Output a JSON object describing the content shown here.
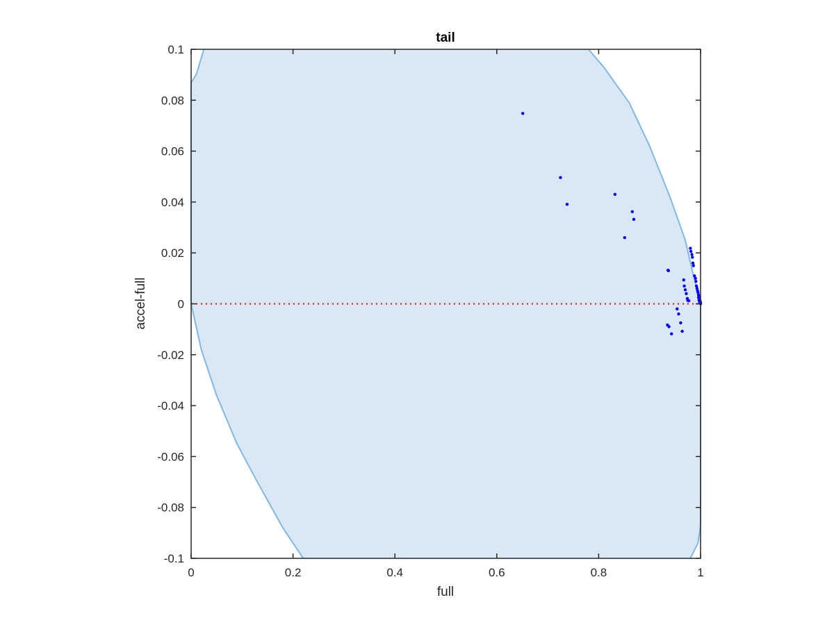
{
  "chart_data": {
    "type": "scatter",
    "title": "tail",
    "xlabel": "full",
    "ylabel": "accel-full",
    "xlim": [
      0,
      1
    ],
    "ylim": [
      -0.1,
      0.1
    ],
    "xticks": [
      0,
      0.2,
      0.4,
      0.6,
      0.8,
      1
    ],
    "xtick_labels": [
      "0",
      "0.2",
      "0.4",
      "0.6",
      "0.8",
      "1"
    ],
    "yticks": [
      -0.1,
      -0.08,
      -0.06,
      -0.04,
      -0.02,
      0,
      0.02,
      0.04,
      0.06,
      0.08,
      0.1
    ],
    "ytick_labels": [
      "-0.1",
      "-0.08",
      "-0.06",
      "-0.04",
      "-0.02",
      "0",
      "0.02",
      "0.04",
      "0.06",
      "0.08",
      "0.1"
    ],
    "grid": false,
    "colors": {
      "region_fill": "#d9e8f4",
      "region_edge": "#7fb8e2",
      "points": "#0000ff",
      "reference_line": "#ff0000",
      "axes": "#262626"
    },
    "reference_line": {
      "y": 0,
      "style": "dotted"
    },
    "region": {
      "left_boundary": [
        [
          0.025,
          0.1
        ],
        [
          0.01,
          0.09
        ],
        [
          0.0,
          0.087
        ],
        [
          0.0,
          0.0
        ],
        [
          0.02,
          -0.018
        ],
        [
          0.05,
          -0.036
        ],
        [
          0.09,
          -0.055
        ],
        [
          0.13,
          -0.07
        ],
        [
          0.18,
          -0.088
        ],
        [
          0.22,
          -0.1
        ]
      ],
      "right_boundary": [
        [
          0.78,
          0.1
        ],
        [
          0.81,
          0.093
        ],
        [
          0.86,
          0.079
        ],
        [
          0.9,
          0.062
        ],
        [
          0.94,
          0.042
        ],
        [
          0.97,
          0.025
        ],
        [
          0.985,
          0.012
        ],
        [
          1.0,
          0.0
        ],
        [
          1.0,
          -0.087
        ],
        [
          0.995,
          -0.094
        ],
        [
          0.98,
          -0.1
        ]
      ]
    },
    "points": {
      "x": [
        0.651,
        0.725,
        0.738,
        0.832,
        0.851,
        0.866,
        0.869,
        0.936,
        0.938,
        0.943,
        0.935,
        0.937,
        0.954,
        0.957,
        0.961,
        0.964,
        0.967,
        0.968,
        0.97,
        0.972,
        0.974,
        0.975,
        0.977,
        0.98,
        0.981,
        0.983,
        0.984,
        0.985,
        0.986,
        0.988,
        0.99,
        0.991,
        0.992,
        0.993,
        0.994,
        0.995,
        0.996,
        0.997,
        0.998,
        0.999,
        1.0,
        1.0,
        0.998,
        0.997,
        0.996
      ],
      "y": [
        0.0748,
        0.0496,
        0.0391,
        0.043,
        0.026,
        0.0362,
        0.0332,
        0.0132,
        -0.009,
        -0.0118,
        -0.0083,
        0.013,
        -0.002,
        -0.004,
        -0.0075,
        -0.0108,
        0.0094,
        0.007,
        0.0055,
        0.004,
        0.0021,
        0.0013,
        0.0012,
        0.0218,
        0.0206,
        0.0194,
        0.0183,
        0.016,
        0.015,
        0.011,
        0.01,
        0.0088,
        0.007,
        0.0061,
        0.0052,
        0.0045,
        0.0035,
        0.0028,
        0.002,
        0.0012,
        0.0005,
        0.0,
        0.0008,
        0.0015,
        0.0025
      ]
    }
  }
}
